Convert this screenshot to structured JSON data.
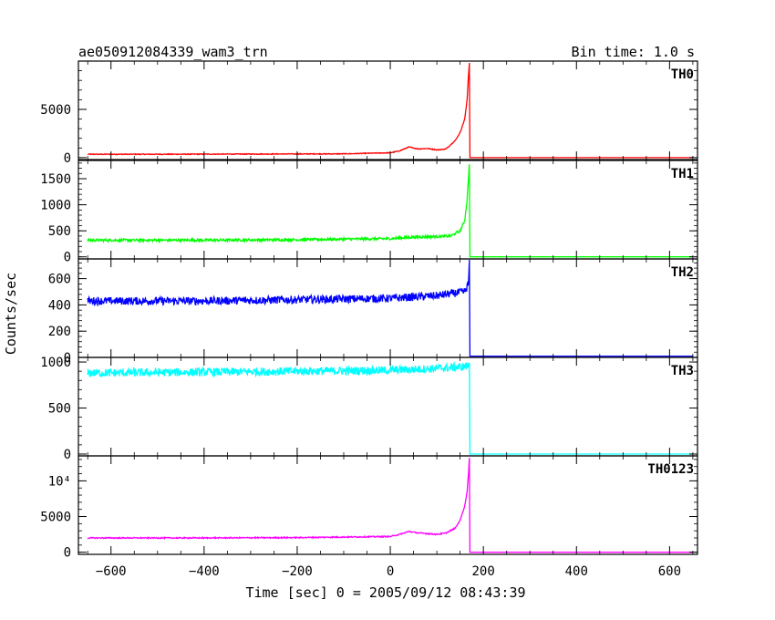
{
  "header": {
    "title": "ae050912084339_wam3_trn",
    "bin_time": "Bin time: 1.0 s"
  },
  "axes": {
    "xlabel": "Time [sec] 0 = 2005/09/12 08:43:39",
    "ylabel": "Counts/sec",
    "xlim": [
      -670,
      660
    ],
    "xticks": [
      -600,
      -400,
      -200,
      0,
      200,
      400,
      600
    ],
    "xtick_labels": [
      "−600",
      "−400",
      "−200",
      "0",
      "200",
      "400",
      "600"
    ]
  },
  "chart_data": [
    {
      "type": "line",
      "name": "TH0",
      "color": "#ff0000",
      "ylim": [
        -200,
        10000
      ],
      "yticks": [
        0,
        5000
      ],
      "ytick_labels": [
        "0",
        "5000"
      ],
      "x": [
        -650,
        -500,
        -300,
        -100,
        0,
        20,
        40,
        60,
        80,
        100,
        120,
        140,
        150,
        160,
        165,
        168,
        170,
        171,
        180,
        300,
        650
      ],
      "y": [
        350,
        350,
        370,
        390,
        500,
        700,
        1100,
        900,
        950,
        800,
        900,
        1800,
        2600,
        4000,
        6000,
        8500,
        9800,
        0,
        0,
        0,
        0
      ],
      "noise": 40
    },
    {
      "type": "line",
      "name": "TH1",
      "color": "#00ff00",
      "ylim": [
        -40,
        1850
      ],
      "yticks": [
        0,
        500,
        1000,
        1500
      ],
      "ytick_labels": [
        "0",
        "500",
        "1000",
        "1500"
      ],
      "x": [
        -650,
        -400,
        -200,
        0,
        50,
        100,
        130,
        150,
        160,
        165,
        168,
        170,
        171,
        180,
        650
      ],
      "y": [
        320,
        320,
        330,
        350,
        380,
        390,
        400,
        500,
        700,
        1100,
        1500,
        1800,
        0,
        0,
        0
      ],
      "noise": 25
    },
    {
      "type": "line",
      "name": "TH2",
      "color": "#0000ff",
      "ylim": [
        0,
        750
      ],
      "yticks": [
        0,
        200,
        400,
        600
      ],
      "ytick_labels": [
        "0",
        "200",
        "400",
        "600"
      ],
      "x": [
        -650,
        -400,
        -200,
        0,
        100,
        160,
        168,
        170,
        171,
        180,
        650
      ],
      "y": [
        430,
        430,
        440,
        450,
        470,
        500,
        560,
        720,
        10,
        10,
        10
      ],
      "noise": 30
    },
    {
      "type": "line",
      "name": "TH3",
      "color": "#00ffff",
      "ylim": [
        -20,
        1050
      ],
      "yticks": [
        0,
        500,
        1000
      ],
      "ytick_labels": [
        "0",
        "500",
        "1000"
      ],
      "x": [
        -650,
        -400,
        -200,
        0,
        100,
        160,
        168,
        170,
        171,
        180,
        650
      ],
      "y": [
        880,
        890,
        900,
        910,
        930,
        950,
        960,
        1000,
        0,
        0,
        0
      ],
      "noise": 45
    },
    {
      "type": "line",
      "name": "TH0123",
      "color": "#ff00ff",
      "ylim": [
        -300,
        13500
      ],
      "yticks": [
        0,
        5000,
        10000
      ],
      "ytick_labels": [
        "0",
        "5000",
        "10⁴"
      ],
      "x": [
        -650,
        -400,
        -200,
        0,
        20,
        40,
        60,
        80,
        100,
        120,
        140,
        150,
        160,
        165,
        168,
        170,
        171,
        180,
        650
      ],
      "y": [
        2000,
        2000,
        2050,
        2200,
        2500,
        2900,
        2700,
        2600,
        2500,
        2700,
        3400,
        4500,
        6500,
        8500,
        11000,
        13200,
        0,
        0,
        0
      ],
      "noise": 80
    }
  ]
}
